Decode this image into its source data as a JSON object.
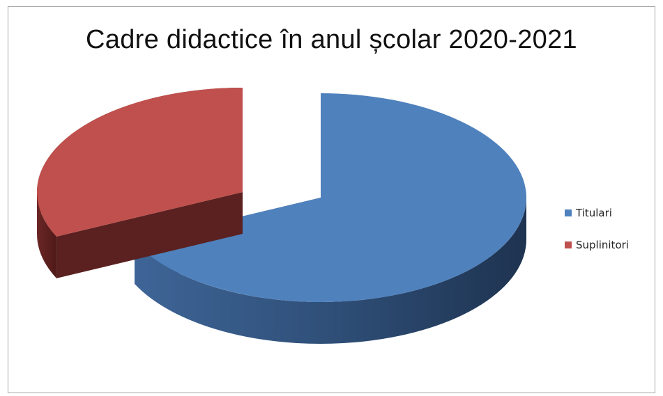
{
  "chart_data": {
    "type": "pie",
    "title": "Cadre didactice în anul școlar 2020-2021",
    "series": [
      {
        "name": "Titulari",
        "value": 68,
        "color": "#4f81bd"
      },
      {
        "name": "Suplinitori",
        "value": 32,
        "color": "#c0504d"
      }
    ],
    "legend_position": "right",
    "style": "3d-exploded"
  }
}
